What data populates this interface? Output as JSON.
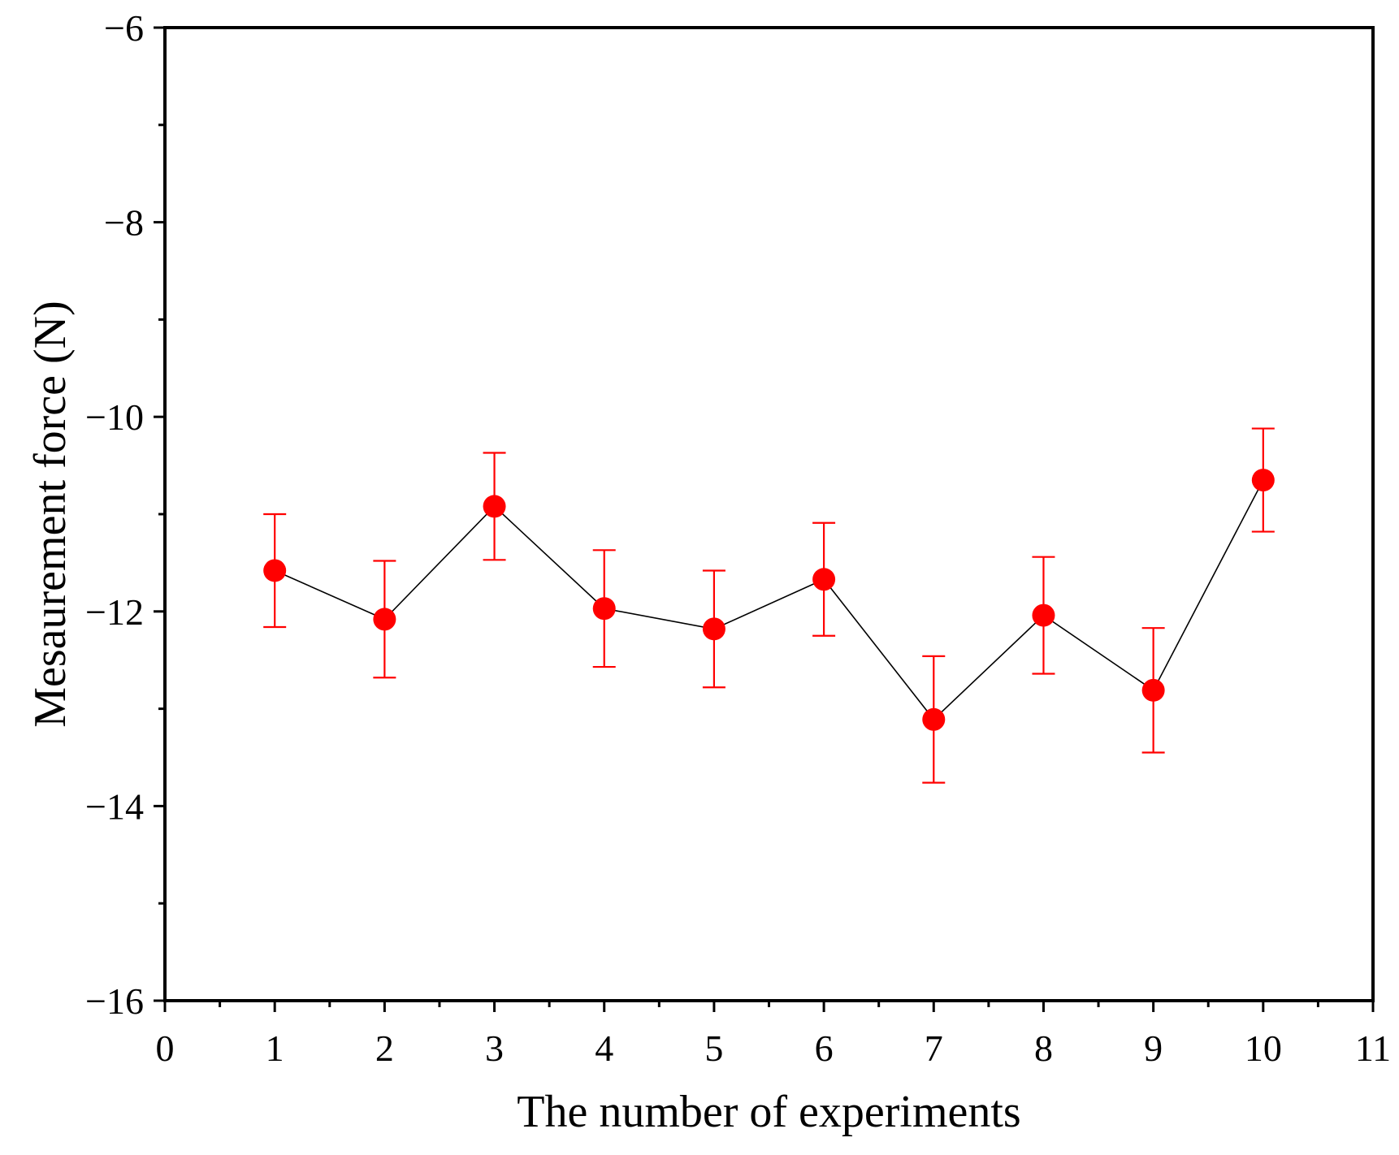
{
  "chart_data": {
    "type": "scatter",
    "xlabel": "The number of experiments",
    "ylabel": "Mesaurement force (N)",
    "xlim": [
      0,
      11
    ],
    "ylim": [
      -16,
      -6
    ],
    "x_ticks": [
      0,
      1,
      2,
      3,
      4,
      5,
      6,
      7,
      8,
      9,
      10,
      11
    ],
    "x_tick_labels": [
      "0",
      "1",
      "2",
      "3",
      "4",
      "5",
      "6",
      "7",
      "8",
      "9",
      "10",
      "11"
    ],
    "y_ticks": [
      -16,
      -14,
      -12,
      -10,
      -8,
      -6
    ],
    "y_tick_labels": [
      "−16",
      "−14",
      "−12",
      "−10",
      "−8",
      "−6"
    ],
    "x_minor_step": 0.5,
    "y_minor_step": 1,
    "series": [
      {
        "name": "Measurement force",
        "x": [
          1,
          2,
          3,
          4,
          5,
          6,
          7,
          8,
          9,
          10
        ],
        "y": [
          -11.58,
          -12.08,
          -10.92,
          -11.97,
          -12.18,
          -11.67,
          -13.11,
          -12.04,
          -12.81,
          -10.65
        ],
        "error": [
          0.58,
          0.6,
          0.55,
          0.6,
          0.6,
          0.58,
          0.65,
          0.6,
          0.64,
          0.53
        ],
        "marker_color": "#ff0000",
        "error_color": "#ff0000",
        "line_color": "#000000"
      }
    ]
  }
}
